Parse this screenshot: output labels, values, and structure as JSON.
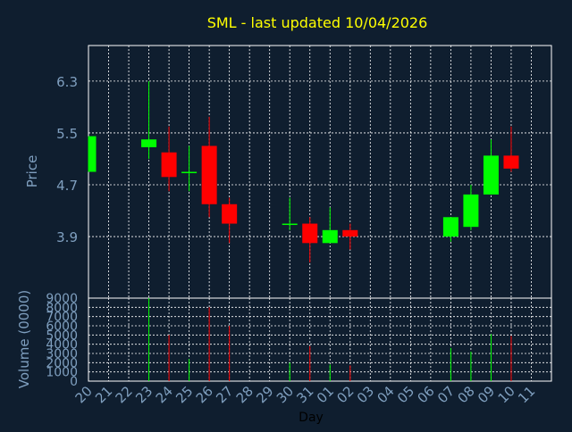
{
  "chart_data": {
    "type": "candlestick",
    "title": "SML - last updated 10/04/2026",
    "xlabel": "Day",
    "colors": {
      "background": "#0f1e2f",
      "title": "#ffff00",
      "axis_text": "#7f9fbf",
      "grid": "#ffffff",
      "up": "#00ff00",
      "down": "#ff0000"
    },
    "days": [
      "20",
      "21",
      "22",
      "23",
      "24",
      "25",
      "26",
      "27",
      "28",
      "29",
      "30",
      "31",
      "01",
      "02",
      "03",
      "04",
      "05",
      "06",
      "07",
      "08",
      "09",
      "10",
      "11"
    ],
    "price_panel": {
      "ylabel": "Price",
      "ylim": [
        2.95,
        6.85
      ],
      "yticks": [
        3.9,
        4.7,
        5.5,
        6.3
      ],
      "ytick_labels": [
        "3.9",
        "4.7",
        "5.5",
        "6.3"
      ],
      "grid": true
    },
    "volume_panel": {
      "ylabel": "Volume (0000)",
      "ylim": [
        0,
        9000
      ],
      "yticks": [
        0,
        1000,
        2000,
        3000,
        4000,
        5000,
        6000,
        7000,
        8000,
        9000
      ],
      "ytick_labels": [
        "0",
        "1000",
        "2000",
        "3000",
        "4000",
        "5000",
        "6000",
        "7000",
        "8000",
        "9000"
      ],
      "grid": true
    },
    "candles": [
      {
        "day": "20",
        "open": 4.9,
        "high": 5.45,
        "low": 4.9,
        "close": 5.45,
        "volume": 0
      },
      {
        "day": "23",
        "open": 5.28,
        "high": 6.3,
        "low": 5.1,
        "close": 5.4,
        "volume": 9000
      },
      {
        "day": "24",
        "open": 5.2,
        "high": 5.6,
        "low": 4.6,
        "close": 4.82,
        "volume": 5000
      },
      {
        "day": "25",
        "open": 4.9,
        "high": 5.3,
        "low": 4.6,
        "close": 4.9,
        "volume": 2400
      },
      {
        "day": "26",
        "open": 5.3,
        "high": 5.75,
        "low": 4.2,
        "close": 4.4,
        "volume": 8000
      },
      {
        "day": "27",
        "open": 4.4,
        "high": 4.5,
        "low": 3.8,
        "close": 4.1,
        "volume": 6000
      },
      {
        "day": "30",
        "open": 4.08,
        "high": 4.5,
        "low": 4.0,
        "close": 4.1,
        "volume": 2000
      },
      {
        "day": "31",
        "open": 4.1,
        "high": 4.2,
        "low": 3.5,
        "close": 3.8,
        "volume": 3800
      },
      {
        "day": "01",
        "open": 3.8,
        "high": 4.35,
        "low": 3.8,
        "close": 4.0,
        "volume": 1800
      },
      {
        "day": "02",
        "open": 4.0,
        "high": 4.1,
        "low": 3.7,
        "close": 3.9,
        "volume": 1700
      },
      {
        "day": "07",
        "open": 3.9,
        "high": 4.2,
        "low": 3.82,
        "close": 4.2,
        "volume": 3600
      },
      {
        "day": "08",
        "open": 4.05,
        "high": 4.7,
        "low": 4.0,
        "close": 4.55,
        "volume": 3200
      },
      {
        "day": "09",
        "open": 4.55,
        "high": 5.4,
        "low": 4.55,
        "close": 5.15,
        "volume": 5100
      },
      {
        "day": "10",
        "open": 5.15,
        "high": 5.6,
        "low": 4.9,
        "close": 4.95,
        "volume": 4900
      }
    ]
  }
}
